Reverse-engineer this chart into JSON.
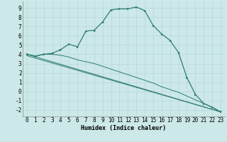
{
  "xlabel": "Humidex (Indice chaleur)",
  "bg_color": "#cce8e8",
  "line_color": "#2e7d6e",
  "xlim": [
    -0.5,
    23.5
  ],
  "ylim": [
    -2.7,
    9.7
  ],
  "xticks": [
    0,
    1,
    2,
    3,
    4,
    5,
    6,
    7,
    8,
    9,
    10,
    11,
    12,
    13,
    14,
    15,
    16,
    17,
    18,
    19,
    20,
    21,
    22,
    23
  ],
  "yticks": [
    -2,
    -1,
    0,
    1,
    2,
    3,
    4,
    5,
    6,
    7,
    8,
    9
  ],
  "curve1_x": [
    0,
    1,
    2,
    3,
    4,
    5,
    6,
    7,
    8,
    9,
    10,
    11,
    12,
    13,
    14,
    15,
    16,
    17,
    18,
    19,
    20,
    21,
    22,
    23
  ],
  "curve1_y": [
    4.0,
    3.8,
    4.0,
    4.1,
    4.5,
    5.1,
    4.8,
    6.5,
    6.6,
    7.5,
    8.8,
    8.9,
    8.9,
    9.1,
    8.7,
    7.1,
    6.2,
    5.5,
    4.2,
    1.5,
    -0.3,
    -1.3,
    -1.7,
    -2.2
  ],
  "curve2_x": [
    0,
    1,
    2,
    3,
    4,
    5,
    6,
    7,
    8,
    9,
    10,
    11,
    12,
    13,
    14,
    15,
    16,
    17,
    18,
    19,
    20,
    21,
    22,
    23
  ],
  "curve2_y": [
    4.0,
    3.8,
    4.0,
    4.0,
    3.9,
    3.7,
    3.4,
    3.2,
    3.0,
    2.7,
    2.4,
    2.1,
    1.8,
    1.5,
    1.2,
    0.9,
    0.5,
    0.2,
    -0.1,
    -0.5,
    -0.9,
    -1.3,
    -1.7,
    -2.2
  ],
  "curve3_x": [
    0,
    23
  ],
  "curve3_y": [
    4.0,
    -2.2
  ],
  "curve4_x": [
    0,
    23
  ],
  "curve4_y": [
    4.0,
    -2.2
  ],
  "grid_color": "#b8d8d8",
  "font_size": 5.5,
  "xlabel_fontsize": 6.0,
  "lw_main": 0.9,
  "lw_extra": 0.7,
  "marker_size": 2.0
}
